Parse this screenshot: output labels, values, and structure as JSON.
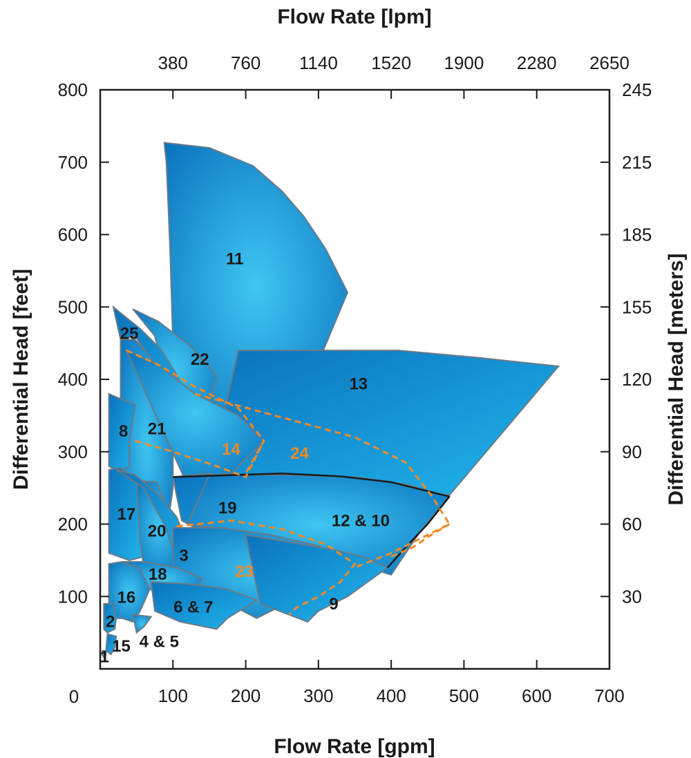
{
  "colors": {
    "region_fill_light": "#21b6ec",
    "region_fill_dark": "#0a72bd",
    "region_stroke": "#6b7a86",
    "orange": "#f08a24",
    "axis": "#1a1a1a"
  },
  "chart_data": {
    "type": "area",
    "xlabel": "Flow Rate [gpm]",
    "xlabel_secondary": "Flow Rate [lpm]",
    "ylabel": "Differential Head  [feet]",
    "ylabel_secondary": "Differential Head [meters]",
    "xlim": [
      0,
      700
    ],
    "ylim": [
      0,
      800
    ],
    "x_ticks": [
      100,
      200,
      300,
      400,
      500,
      600,
      700
    ],
    "x_tick_labels": [
      "100",
      "200",
      "300",
      "400",
      "500",
      "600",
      "700"
    ],
    "origin_label": "0",
    "y_ticks": [
      100,
      200,
      300,
      400,
      500,
      600,
      700,
      800
    ],
    "y_tick_labels": [
      "100",
      "200",
      "300",
      "400",
      "500",
      "600",
      "700",
      "800"
    ],
    "x2_ticks": [
      100,
      200,
      300,
      400,
      500,
      600,
      700
    ],
    "x2_tick_labels": [
      "380",
      "760",
      "1140",
      "1520",
      "1900",
      "2280",
      "2650"
    ],
    "y2_ticks": [
      100,
      200,
      300,
      400,
      500,
      600,
      700,
      800
    ],
    "y2_tick_labels": [
      "30",
      "60",
      "90",
      "120",
      "155",
      "185",
      "215",
      "245"
    ],
    "grid": false,
    "regions": [
      {
        "label": "11",
        "label_at": [
          185,
          565
        ],
        "points": [
          [
            88,
            727
          ],
          [
            91,
            700
          ],
          [
            96,
            580
          ],
          [
            100,
            450
          ],
          [
            105,
            400
          ],
          [
            145,
            350
          ],
          [
            170,
            330
          ],
          [
            190,
            370
          ],
          [
            240,
            390
          ],
          [
            290,
            400
          ],
          [
            340,
            520
          ],
          [
            310,
            580
          ],
          [
            280,
            625
          ],
          [
            250,
            660
          ],
          [
            210,
            695
          ],
          [
            150,
            720
          ],
          [
            88,
            727
          ]
        ]
      },
      {
        "label": "13",
        "label_at": [
          355,
          392
        ],
        "points": [
          [
            190,
            440
          ],
          [
            410,
            440
          ],
          [
            520,
            430
          ],
          [
            630,
            418
          ],
          [
            480,
            240
          ],
          [
            380,
            253
          ],
          [
            305,
            262
          ],
          [
            260,
            265
          ],
          [
            150,
            265
          ],
          [
            190,
            440
          ]
        ]
      },
      {
        "label": "22",
        "label_at": [
          137,
          426
        ],
        "points": [
          [
            45,
            497
          ],
          [
            80,
            480
          ],
          [
            125,
            445
          ],
          [
            160,
            405
          ],
          [
            140,
            330
          ],
          [
            110,
            330
          ],
          [
            75,
            460
          ],
          [
            45,
            497
          ]
        ]
      },
      {
        "label": "25",
        "label_at": [
          40,
          462
        ],
        "points": [
          [
            18,
            500
          ],
          [
            30,
            490
          ],
          [
            55,
            470
          ],
          [
            83,
            442
          ],
          [
            103,
            410
          ],
          [
            140,
            335
          ],
          [
            115,
            340
          ],
          [
            75,
            420
          ],
          [
            48,
            460
          ],
          [
            28,
            455
          ],
          [
            18,
            500
          ]
        ]
      },
      {
        "label": "21",
        "label_at": [
          78,
          330
        ],
        "points": [
          [
            28,
            455
          ],
          [
            48,
            455
          ],
          [
            78,
            420
          ],
          [
            100,
            375
          ],
          [
            100,
            250
          ],
          [
            88,
            165
          ],
          [
            45,
            215
          ],
          [
            28,
            280
          ],
          [
            28,
            455
          ]
        ]
      },
      {
        "label": "8",
        "label_at": [
          32,
          327
        ],
        "points": [
          [
            12,
            380
          ],
          [
            35,
            370
          ],
          [
            48,
            365
          ],
          [
            40,
            315
          ],
          [
            40,
            280
          ],
          [
            25,
            272
          ],
          [
            12,
            280
          ],
          [
            12,
            380
          ]
        ]
      },
      {
        "label": "14",
        "label_at": [
          180,
          302
        ],
        "points": [
          [
            36,
            440
          ],
          [
            80,
            420
          ],
          [
            130,
            380
          ],
          [
            190,
            350
          ],
          [
            225,
            315
          ],
          [
            180,
            270
          ],
          [
            115,
            265
          ],
          [
            36,
            440
          ]
        ]
      },
      {
        "label": "19",
        "label_at": [
          175,
          221
        ],
        "points": [
          [
            100,
            265
          ],
          [
            150,
            270
          ],
          [
            200,
            255
          ],
          [
            260,
            225
          ],
          [
            300,
            195
          ],
          [
            330,
            165
          ],
          [
            250,
            175
          ],
          [
            190,
            185
          ],
          [
            130,
            195
          ],
          [
            112,
            205
          ],
          [
            100,
            265
          ]
        ]
      },
      {
        "label": "12 & 10",
        "label_at": [
          358,
          203
        ],
        "points": [
          [
            150,
            268
          ],
          [
            260,
            268
          ],
          [
            350,
            265
          ],
          [
            420,
            255
          ],
          [
            480,
            238
          ],
          [
            440,
            190
          ],
          [
            400,
            130
          ],
          [
            350,
            145
          ],
          [
            260,
            170
          ],
          [
            190,
            190
          ],
          [
            120,
            200
          ],
          [
            150,
            268
          ]
        ]
      },
      {
        "label": "17",
        "label_at": [
          36,
          212
        ],
        "points": [
          [
            12,
            275
          ],
          [
            28,
            278
          ],
          [
            50,
            260
          ],
          [
            60,
            215
          ],
          [
            60,
            155
          ],
          [
            40,
            150
          ],
          [
            12,
            160
          ],
          [
            12,
            275
          ]
        ]
      },
      {
        "label": "20",
        "label_at": [
          78,
          189
        ],
        "points": [
          [
            50,
            260
          ],
          [
            78,
            258
          ],
          [
            88,
            230
          ],
          [
            100,
            195
          ],
          [
            112,
            140
          ],
          [
            88,
            135
          ],
          [
            60,
            140
          ],
          [
            55,
            175
          ],
          [
            50,
            260
          ]
        ]
      },
      {
        "label": "3",
        "label_at": [
          115,
          155
        ],
        "points": [
          [
            22,
            275
          ],
          [
            48,
            268
          ],
          [
            80,
            240
          ],
          [
            105,
            210
          ],
          [
            125,
            160
          ],
          [
            130,
            130
          ],
          [
            110,
            140
          ],
          [
            88,
            200
          ],
          [
            60,
            250
          ],
          [
            22,
            275
          ]
        ]
      },
      {
        "label": "23",
        "label_at": [
          198,
          133
        ],
        "points": [
          [
            100,
            195
          ],
          [
            165,
            195
          ],
          [
            235,
            185
          ],
          [
            300,
            170
          ],
          [
            340,
            145
          ],
          [
            350,
            125
          ],
          [
            305,
            110
          ],
          [
            255,
            90
          ],
          [
            215,
            70
          ],
          [
            100,
            130
          ],
          [
            100,
            195
          ]
        ]
      },
      {
        "label": "9",
        "label_at": [
          321,
          88
        ],
        "points": [
          [
            200,
            185
          ],
          [
            260,
            175
          ],
          [
            320,
            165
          ],
          [
            360,
            155
          ],
          [
            395,
            140
          ],
          [
            340,
            100
          ],
          [
            300,
            80
          ],
          [
            285,
            65
          ],
          [
            220,
            90
          ],
          [
            200,
            185
          ]
        ]
      },
      {
        "label": "18",
        "label_at": [
          79,
          129
        ],
        "points": [
          [
            32,
            148
          ],
          [
            60,
            148
          ],
          [
            105,
            140
          ],
          [
            140,
            125
          ],
          [
            130,
            100
          ],
          [
            85,
            105
          ],
          [
            50,
            115
          ],
          [
            32,
            148
          ]
        ]
      },
      {
        "label": "6 & 7",
        "label_at": [
          128,
          84
        ],
        "points": [
          [
            70,
            120
          ],
          [
            110,
            118
          ],
          [
            140,
            115
          ],
          [
            175,
            110
          ],
          [
            215,
            95
          ],
          [
            175,
            70
          ],
          [
            160,
            55
          ],
          [
            110,
            65
          ],
          [
            75,
            80
          ],
          [
            70,
            120
          ]
        ]
      },
      {
        "label": "16",
        "label_at": [
          36,
          97
        ],
        "points": [
          [
            12,
            145
          ],
          [
            30,
            148
          ],
          [
            55,
            138
          ],
          [
            68,
            110
          ],
          [
            55,
            80
          ],
          [
            45,
            65
          ],
          [
            30,
            70
          ],
          [
            12,
            70
          ],
          [
            12,
            145
          ]
        ]
      },
      {
        "label": "2",
        "label_at": [
          14,
          64
        ],
        "points": [
          [
            5,
            90
          ],
          [
            18,
            90
          ],
          [
            22,
            70
          ],
          [
            20,
            55
          ],
          [
            10,
            50
          ],
          [
            5,
            55
          ],
          [
            5,
            90
          ]
        ]
      },
      {
        "label": "4 & 5",
        "label_at": [
          81,
          36
        ],
        "points": [
          [
            45,
            75
          ],
          [
            70,
            72
          ],
          [
            60,
            58
          ],
          [
            50,
            50
          ],
          [
            45,
            75
          ]
        ]
      },
      {
        "label": "15",
        "label_at": [
          29,
          30
        ],
        "points": [
          [
            10,
            48
          ],
          [
            22,
            45
          ],
          [
            20,
            30
          ],
          [
            15,
            20
          ],
          [
            8,
            25
          ],
          [
            10,
            48
          ]
        ]
      },
      {
        "label": "1",
        "label_at": [
          6,
          15
        ],
        "points": [
          [
            3,
            25
          ],
          [
            8,
            25
          ],
          [
            7,
            15
          ],
          [
            3,
            18
          ],
          [
            3,
            25
          ]
        ]
      }
    ],
    "boundary_lines": [
      {
        "kind": "solid",
        "color": "#1a1a1a",
        "points": [
          [
            100,
            265
          ],
          [
            250,
            270
          ],
          [
            330,
            266
          ],
          [
            400,
            258
          ],
          [
            480,
            238
          ]
        ]
      },
      {
        "kind": "solid",
        "color": "#1a1a1a",
        "points": [
          [
            395,
            140
          ],
          [
            420,
            168
          ],
          [
            450,
            200
          ],
          [
            480,
            238
          ]
        ]
      },
      {
        "kind": "dashed",
        "color": "#f08a24",
        "points": [
          [
            36,
            440
          ],
          [
            80,
            420
          ],
          [
            130,
            390
          ],
          [
            190,
            360
          ],
          [
            225,
            315
          ],
          [
            200,
            270
          ]
        ]
      },
      {
        "kind": "dashed",
        "color": "#f08a24",
        "points": [
          [
            48,
            315
          ],
          [
            100,
            300
          ],
          [
            160,
            280
          ],
          [
            200,
            265
          ],
          [
            225,
            315
          ]
        ]
      },
      {
        "kind": "dashed",
        "color": "#f08a24",
        "points": [
          [
            130,
            380
          ],
          [
            240,
            350
          ],
          [
            350,
            320
          ],
          [
            420,
            285
          ],
          [
            455,
            240
          ],
          [
            480,
            200
          ],
          [
            400,
            160
          ],
          [
            350,
            140
          ]
        ]
      },
      {
        "kind": "dashed",
        "color": "#f08a24",
        "points": [
          [
            105,
            197
          ],
          [
            180,
            205
          ],
          [
            250,
            193
          ],
          [
            310,
            172
          ],
          [
            350,
            145
          ],
          [
            330,
            120
          ],
          [
            300,
            100
          ],
          [
            270,
            85
          ],
          [
            260,
            75
          ]
        ]
      },
      {
        "kind": "dashed",
        "color": "#f08a24",
        "points": [
          [
            400,
            155
          ],
          [
            430,
            168
          ],
          [
            455,
            185
          ],
          [
            480,
            200
          ]
        ]
      }
    ],
    "orange_labels": [
      "14",
      "24",
      "23"
    ],
    "label_24_at": [
      274,
      296
    ]
  }
}
